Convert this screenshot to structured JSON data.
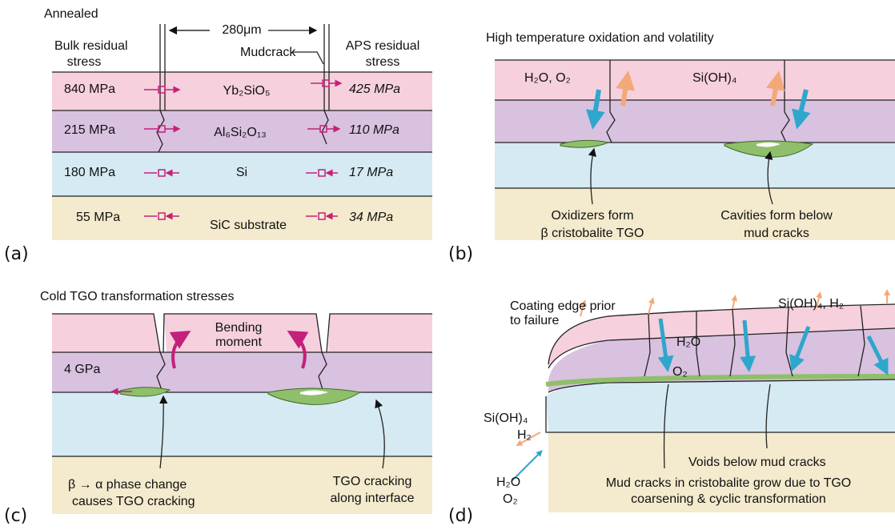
{
  "panel_labels": [
    "(a)",
    "(b)",
    "(c)",
    "(d)"
  ],
  "a": {
    "title": "Annealed",
    "spacing": "280μm",
    "left_header": [
      "Bulk residual",
      "stress"
    ],
    "crack": "Mudcrack",
    "right_header": [
      "APS residual",
      "stress"
    ],
    "layers": [
      {
        "name": "Yb₂SiO₅",
        "bulk": "840 MPa",
        "aps": "425 MPa"
      },
      {
        "name": "Al₆Si₂O₁₃",
        "bulk": "215 MPa",
        "aps": "110 MPa"
      },
      {
        "name": "Si",
        "bulk": "180 MPa",
        "aps": "17 MPa"
      },
      {
        "name": "SiC substrate",
        "bulk": "55 MPa",
        "aps": "34 MPa"
      }
    ]
  },
  "b": {
    "title": "High temperature oxidation and volatility",
    "oxidizers": "H₂O, O₂",
    "volatile": "Si(OH)₄",
    "note_left": [
      "Oxidizers form",
      "β cristobalite TGO"
    ],
    "note_right": [
      "Cavities form below",
      "mud cracks"
    ]
  },
  "c": {
    "title": "Cold TGO transformation stresses",
    "moment": [
      "Bending",
      "moment"
    ],
    "stress": "4 GPa",
    "note_left": [
      "β → α  phase change",
      "causes TGO cracking"
    ],
    "note_right": [
      "TGO cracking",
      "along interface"
    ]
  },
  "d": {
    "edge": [
      "Coating edge prior",
      "to failure"
    ],
    "volatile_top": "Si(OH)₄, H₂",
    "h2o": "H₂O",
    "o2": "O₂",
    "volatile_left": [
      "Si(OH)₄",
      "H₂"
    ],
    "inflow": [
      "H₂O",
      "O₂"
    ],
    "voids": "Voids below mud cracks",
    "note": [
      "Mud cracks in cristobalite grow due to TGO",
      "coarsening & cyclic transformation"
    ]
  }
}
